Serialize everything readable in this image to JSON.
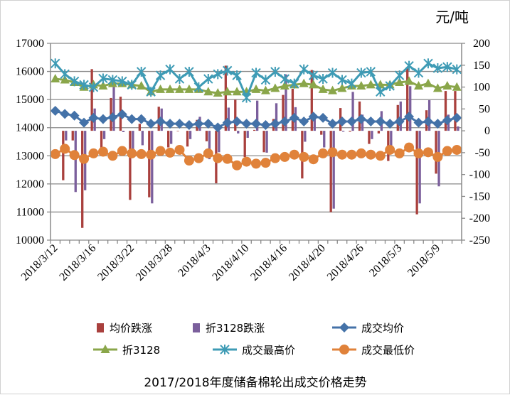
{
  "chart_data": {
    "type": "bar+line",
    "title": "2017/2018年度储备棉轮出成交价格走势",
    "unit_label": "元/吨",
    "x_tick_labels": [
      "2018/3/12",
      "2018/3/16",
      "2018/3/22",
      "2018/3/28",
      "2018/4/3",
      "2018/4/10",
      "2018/4/16",
      "2018/4/20",
      "2018/4/26",
      "2018/5/3",
      "2018/5/9"
    ],
    "x_tick_every": 4,
    "left_axis": {
      "min": 10000,
      "max": 17000,
      "step": 1000
    },
    "right_axis": {
      "min": -250,
      "max": 200,
      "step": 50
    },
    "grid": true,
    "legend_position": "bottom",
    "series": [
      {
        "name": "均价跌涨",
        "type": "bar",
        "axis": "right",
        "color": "#A9403D",
        "values": [
          0,
          -113,
          -22,
          -222,
          141,
          -38,
          75,
          78,
          -158,
          16,
          -152,
          55,
          -38,
          -1,
          -36,
          25,
          -24,
          -120,
          149,
          71,
          -60,
          2,
          -49,
          27,
          82,
          96,
          -109,
          139,
          -9,
          -186,
          52,
          -2,
          67,
          -30,
          -6,
          -69,
          59,
          143,
          -191,
          47,
          -98,
          91,
          91
        ]
      },
      {
        "name": "折3128跌涨",
        "type": "bar",
        "axis": "right",
        "color": "#7B5F9C",
        "values": [
          0,
          -22,
          -140,
          -136,
          51,
          -19,
          100,
          -3,
          -49,
          -33,
          -166,
          51,
          -30,
          0,
          -19,
          32,
          -65,
          -49,
          53,
          -6,
          -16,
          69,
          -50,
          63,
          129,
          54,
          -25,
          30,
          -38,
          -178,
          -2,
          89,
          37,
          -19,
          45,
          -41,
          67,
          102,
          -166,
          70,
          -127,
          37,
          10
        ]
      },
      {
        "name": "成交均价",
        "type": "line",
        "marker": "diamond",
        "axis": "left",
        "color": "#4472A8",
        "values": [
          14600,
          14490,
          14430,
          14180,
          14350,
          14305,
          14370,
          14475,
          14305,
          14305,
          14140,
          14220,
          14140,
          14140,
          14095,
          14140,
          14140,
          14010,
          14180,
          14220,
          14140,
          14140,
          14095,
          14140,
          14220,
          14350,
          14220,
          14390,
          14350,
          14140,
          14220,
          14220,
          14305,
          14220,
          14220,
          14140,
          14220,
          14390,
          14180,
          14220,
          14140,
          14265,
          14350
        ]
      },
      {
        "name": "折3128",
        "type": "line",
        "marker": "triangle",
        "axis": "left",
        "color": "#8AA64A",
        "values": [
          15735,
          15700,
          15610,
          15440,
          15525,
          15485,
          15570,
          15570,
          15525,
          15485,
          15275,
          15360,
          15360,
          15360,
          15360,
          15360,
          15275,
          15230,
          15275,
          15275,
          15275,
          15360,
          15315,
          15400,
          15485,
          15525,
          15570,
          15525,
          15360,
          15315,
          15400,
          15485,
          15485,
          15525,
          15525,
          15525,
          15610,
          15650,
          15485,
          15570,
          15400,
          15485,
          15440
        ]
      },
      {
        "name": "成交最高价",
        "type": "line",
        "marker": "star",
        "axis": "left",
        "color": "#3E9BB5",
        "values": [
          16285,
          15905,
          15650,
          15525,
          15440,
          15750,
          15700,
          15650,
          15525,
          15990,
          15275,
          15860,
          16075,
          15735,
          15990,
          15440,
          15735,
          15905,
          16030,
          15860,
          15065,
          15950,
          15700,
          15990,
          15735,
          15570,
          16075,
          15860,
          15735,
          15950,
          15700,
          15570,
          15950,
          15990,
          15275,
          15485,
          15860,
          16200,
          15950,
          16285,
          16115,
          16160,
          16075
        ]
      },
      {
        "name": "成交最低价",
        "type": "line",
        "marker": "circle",
        "axis": "left",
        "color": "#E0823A",
        "values": [
          13060,
          13250,
          13025,
          12890,
          13085,
          13145,
          13000,
          13170,
          13085,
          13060,
          13040,
          13170,
          13110,
          13210,
          12830,
          12915,
          13085,
          12915,
          12890,
          12660,
          12790,
          12720,
          12750,
          12915,
          12960,
          13040,
          12960,
          12875,
          13085,
          13125,
          13040,
          13040,
          13085,
          13040,
          13000,
          13210,
          13085,
          13295,
          13085,
          13125,
          12960,
          13170,
          13210
        ]
      }
    ]
  }
}
